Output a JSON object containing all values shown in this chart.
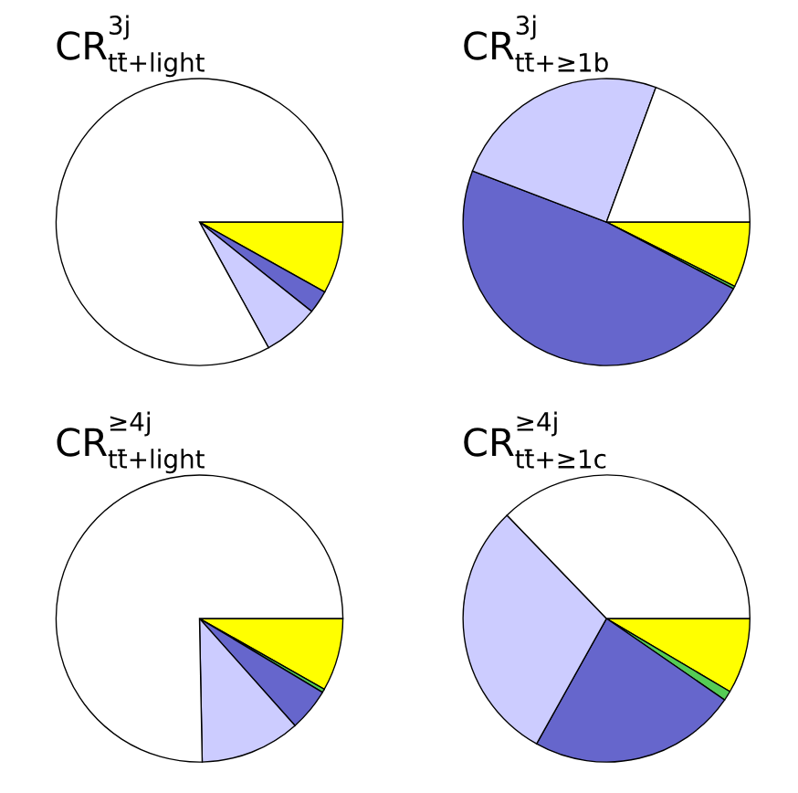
{
  "chart_data": [
    {
      "type": "pie",
      "title": "CR$^{3j}$$_{tt̄+light}$",
      "categories": [
        null,
        null,
        null,
        null,
        null
      ],
      "values": [
        8.1,
        null,
        2.6,
        6.3,
        83.0
      ],
      "colors": [
        "#ffff00",
        "#55cc55",
        "#6666cc",
        "#ccccff",
        "#ffffff"
      ]
    },
    {
      "type": "pie",
      "title": "CR$^{3j}$$_{tt̄+≥1b}$",
      "categories": [
        null,
        null,
        null,
        null,
        null
      ],
      "values": [
        7.4,
        0.3,
        48.1,
        24.8,
        19.4
      ],
      "colors": [
        "#ffff00",
        "#55cc55",
        "#6666cc",
        "#ccccff",
        "#ffffff"
      ]
    },
    {
      "type": "pie",
      "title": "CR$^{≥4j}$$_{tt̄+light}$",
      "categories": [
        null,
        null,
        null,
        null,
        null
      ],
      "values": [
        8.2,
        0.4,
        4.8,
        11.3,
        75.3
      ],
      "colors": [
        "#ffff00",
        "#55cc55",
        "#6666cc",
        "#ccccff",
        "#ffffff"
      ]
    },
    {
      "type": "pie",
      "title": "CR$^{≥4j}$$_{tt̄+≥1c}$",
      "categories": [
        null,
        null,
        null,
        null,
        null
      ],
      "values": [
        8.5,
        1.1,
        23.5,
        29.7,
        37.2
      ],
      "colors": [
        "#ffff00",
        "#55cc55",
        "#6666cc",
        "#ccccff",
        "#ffffff"
      ]
    }
  ]
}
